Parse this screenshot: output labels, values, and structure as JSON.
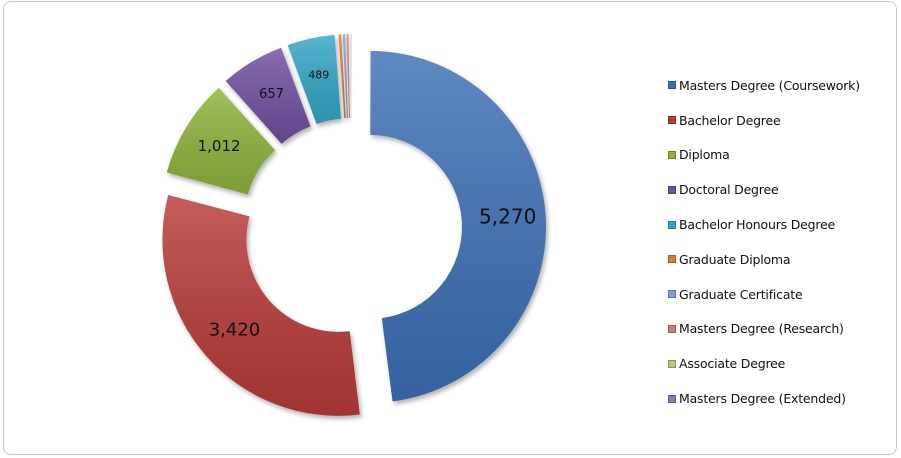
{
  "chart_data": {
    "type": "pie",
    "subtype": "exploded-doughnut",
    "title": "",
    "categories": [
      "Masters Degree (Coursework)",
      "Bachelor Degree",
      "Diploma",
      "Doctoral Degree",
      "Bachelor Honours Degree",
      "Graduate Diploma",
      "Graduate Certificate",
      "Masters Degree (Research)",
      "Associate Degree",
      "Masters Degree (Extended)"
    ],
    "values": [
      5270,
      3420,
      1012,
      657,
      489,
      40,
      35,
      30,
      15,
      10
    ],
    "data_labels": [
      "5,270",
      "3,420",
      "1,012",
      "657",
      "489",
      "",
      "",
      "",
      "",
      ""
    ],
    "colors": [
      "#3d6fb6",
      "#b83a37",
      "#8db33b",
      "#7150a0",
      "#33a6c6",
      "#e07b27",
      "#7f9fd3",
      "#d07a78",
      "#b5c97a",
      "#8a7bb5"
    ],
    "legend_position": "right"
  },
  "legend": {
    "items": [
      {
        "label": "Masters Degree (Coursework)",
        "color": "#3d6fb6"
      },
      {
        "label": "Bachelor Degree",
        "color": "#b83a37"
      },
      {
        "label": "Diploma",
        "color": "#8db33b"
      },
      {
        "label": "Doctoral Degree",
        "color": "#7150a0"
      },
      {
        "label": "Bachelor Honours Degree",
        "color": "#33a6c6"
      },
      {
        "label": "Graduate Diploma",
        "color": "#e07b27"
      },
      {
        "label": "Graduate Certificate",
        "color": "#7f9fd3"
      },
      {
        "label": "Masters Degree (Research)",
        "color": "#d07a78"
      },
      {
        "label": "Associate Degree",
        "color": "#b5c97a"
      },
      {
        "label": "Masters Degree (Extended)",
        "color": "#8a7bb5"
      }
    ]
  }
}
